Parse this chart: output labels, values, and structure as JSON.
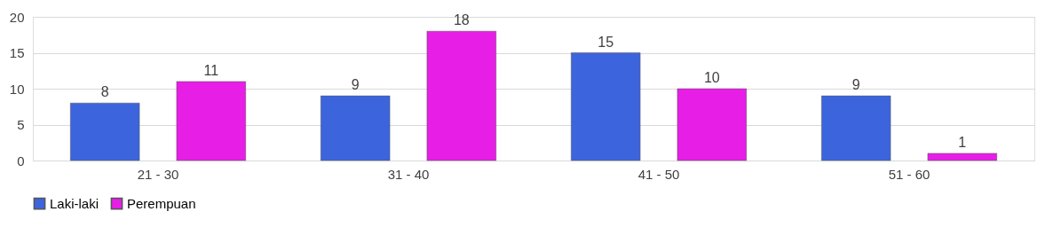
{
  "chart_data": {
    "type": "bar",
    "categories": [
      "21 - 30",
      "31 - 40",
      "41 - 50",
      "51 - 60"
    ],
    "series": [
      {
        "name": "Laki-laki",
        "color": "#3c64dc",
        "values": [
          8,
          9,
          15,
          9
        ]
      },
      {
        "name": "Perempuan",
        "color": "#e61ee6",
        "values": [
          11,
          18,
          10,
          1
        ]
      }
    ],
    "ylim": [
      0,
      20
    ],
    "yticks": [
      0,
      5,
      10,
      15,
      20
    ],
    "grid": "y",
    "legend": "bottom",
    "data_labels": true
  }
}
